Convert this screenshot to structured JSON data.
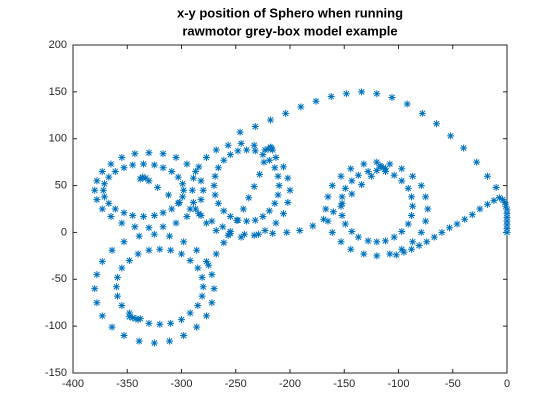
{
  "chart_data": {
    "type": "scatter",
    "title": [
      "x-y position of Sphero when running",
      "rawmotor grey-box model example"
    ],
    "color": "#0072bd",
    "marker": "*",
    "xlim": [
      -400,
      0
    ],
    "xticks": [
      -400,
      -350,
      -300,
      -250,
      -200,
      -150,
      -100,
      -50,
      0
    ],
    "ylim": [
      -150,
      200
    ],
    "yticks": [
      -150,
      -100,
      -50,
      0,
      50,
      100,
      150,
      200
    ],
    "x": [
      0,
      0,
      0,
      0,
      0,
      0,
      0,
      -1,
      -2,
      -4,
      -7,
      -12,
      -18,
      -25,
      -32,
      -39,
      -46,
      -53,
      -60,
      -67,
      -74,
      -81,
      -88,
      -95,
      -102,
      -10,
      -18,
      -28,
      -40,
      -52,
      -65,
      -78,
      -92,
      -106,
      -120,
      -134,
      -148,
      -162,
      -176,
      -190,
      -204,
      -218,
      -232,
      -246,
      -73,
      -75,
      -79,
      -87,
      -97,
      -108,
      -120,
      -132,
      -144,
      -153,
      -161,
      -165,
      -167,
      -165,
      -161,
      -153,
      -144,
      -132,
      -120,
      -108,
      -97,
      -87,
      -79,
      -75,
      -87,
      -88,
      -91,
      -97,
      -104,
      -112,
      -120,
      -128,
      -137,
      -143,
      -149,
      -152,
      -153,
      -152,
      -149,
      -143,
      -137,
      -128,
      -120,
      -112,
      -104,
      -97,
      -91,
      -88,
      -112,
      -114,
      -116,
      -117,
      -125,
      -134,
      -143,
      -152,
      -160,
      -169,
      -179,
      -191,
      -203,
      -216,
      -229,
      -242,
      -255,
      -200,
      -202,
      -206,
      -213,
      -223,
      -233,
      -245,
      -257,
      -268,
      -277,
      -284,
      -289,
      -290,
      -289,
      -284,
      -277,
      -268,
      -257,
      -245,
      -233,
      -223,
      -213,
      -206,
      -202,
      -210,
      -211,
      -214,
      -219,
      -225,
      -232,
      -240,
      -248,
      -255,
      -261,
      -266,
      -269,
      -270,
      -269,
      -266,
      -261,
      -255,
      -248,
      -240,
      -232,
      -225,
      -219,
      -214,
      -211,
      -216,
      -217,
      -218,
      -220,
      -224,
      -228,
      -233,
      -238,
      -243,
      -249,
      -255,
      -261,
      -268,
      -275,
      -280,
      -282,
      -287,
      -295,
      -305,
      -317,
      -330,
      -343,
      -355,
      -365,
      -373,
      -378,
      -380,
      -378,
      -373,
      -365,
      -355,
      -343,
      -330,
      -317,
      -305,
      -295,
      -287,
      -282,
      -298,
      -299,
      -303,
      -309,
      -317,
      -325,
      -335,
      -345,
      -353,
      -361,
      -367,
      -371,
      -372,
      -371,
      -367,
      -361,
      -353,
      -345,
      -335,
      -325,
      -317,
      -309,
      -303,
      -299,
      -333,
      -336,
      -338,
      -330,
      -322,
      -312,
      -302,
      -292,
      -282,
      -272,
      -262,
      -270,
      -272,
      -277,
      -286,
      -298,
      -311,
      -325,
      -339,
      -353,
      -364,
      -373,
      -378,
      -380,
      -378,
      -373,
      -364,
      -353,
      -339,
      -325,
      -311,
      -298,
      -286,
      -277,
      -272,
      -280,
      -281,
      -285,
      -292,
      -300,
      -310,
      -320,
      -330,
      -340,
      -348,
      -355,
      -359,
      -360,
      -359,
      -355,
      -348,
      -340,
      -330,
      -320,
      -310,
      -300,
      -292,
      -285,
      -281,
      -348,
      -345,
      -342,
      -338
    ],
    "values": [
      0,
      4,
      8,
      12,
      16,
      20,
      24,
      28,
      32,
      35,
      37,
      34,
      30,
      25,
      19,
      14,
      9,
      5,
      0,
      -5,
      -10,
      -14,
      -18,
      -21,
      -24,
      48,
      60,
      75,
      90,
      103,
      116,
      127,
      137,
      144,
      148,
      150,
      148,
      145,
      140,
      134,
      127,
      120,
      113,
      107,
      25,
      38,
      50,
      60,
      68,
      73,
      75,
      73,
      68,
      60,
      50,
      38,
      25,
      12,
      0,
      -10,
      -18,
      -23,
      -25,
      -23,
      -18,
      -10,
      0,
      12,
      28,
      38,
      47,
      55,
      61,
      65,
      66,
      65,
      61,
      55,
      47,
      38,
      28,
      18,
      9,
      1,
      -5,
      -9,
      -10,
      -9,
      -5,
      1,
      9,
      18,
      68,
      69,
      70,
      71,
      60,
      51,
      41,
      31,
      22,
      14,
      7,
      2,
      0,
      -1,
      -2,
      -2,
      -1,
      45,
      58,
      70,
      80,
      88,
      93,
      95,
      93,
      88,
      80,
      70,
      58,
      45,
      32,
      20,
      10,
      2,
      -3,
      -5,
      -3,
      2,
      10,
      20,
      32,
      50,
      60,
      69,
      77,
      83,
      87,
      88,
      87,
      83,
      77,
      69,
      60,
      50,
      40,
      31,
      23,
      17,
      13,
      12,
      13,
      17,
      23,
      31,
      40,
      88,
      90,
      91,
      89,
      75,
      62,
      49,
      37,
      25,
      13,
      1,
      -11,
      -23,
      -35,
      45,
      55,
      65,
      73,
      80,
      84,
      85,
      84,
      80,
      73,
      65,
      55,
      45,
      35,
      25,
      17,
      10,
      6,
      5,
      6,
      10,
      17,
      25,
      35,
      45,
      52,
      59,
      65,
      69,
      72,
      73,
      72,
      69,
      65,
      59,
      52,
      45,
      38,
      31,
      25,
      21,
      18,
      17,
      18,
      21,
      25,
      31,
      38,
      58,
      59,
      57,
      55,
      48,
      40,
      32,
      25,
      18,
      12,
      6,
      -60,
      -45,
      -31,
      -19,
      -10,
      -4,
      -2,
      -4,
      -10,
      -19,
      -31,
      -45,
      -60,
      -75,
      -89,
      -101,
      -110,
      -116,
      -118,
      -116,
      -110,
      -101,
      -89,
      -75,
      -58,
      -48,
      -38,
      -30,
      -23,
      -19,
      -18,
      -19,
      -23,
      -30,
      -38,
      -48,
      -58,
      -68,
      -78,
      -86,
      -93,
      -97,
      -98,
      -97,
      -93,
      -86,
      -78,
      -68,
      -90,
      -91,
      -92,
      -92
    ]
  }
}
